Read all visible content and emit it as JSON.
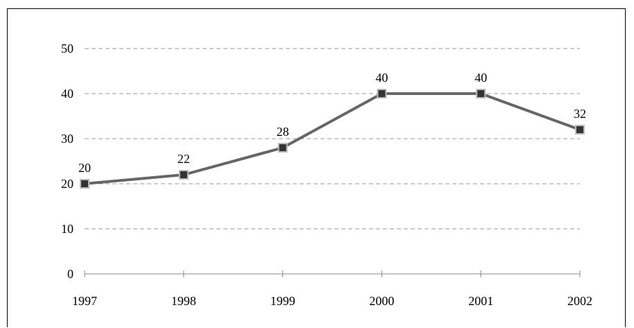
{
  "chart_data": {
    "type": "line",
    "categories": [
      "1997",
      "1998",
      "1999",
      "2000",
      "2001",
      "2002"
    ],
    "series": [
      {
        "values": [
          20,
          22,
          28,
          40,
          40,
          32
        ]
      }
    ],
    "data_labels": [
      "20",
      "22",
      "28",
      "40",
      "40",
      "32"
    ],
    "y_ticks": [
      "0",
      "10",
      "20",
      "30",
      "40",
      "50"
    ],
    "ylim": [
      0,
      50
    ],
    "grid": true,
    "legend": "none",
    "colors": {
      "line": "#666666",
      "marker_fill": "#333333",
      "marker_border": "#bbbbbb",
      "grid": "#999999",
      "axis": "#888888"
    }
  }
}
